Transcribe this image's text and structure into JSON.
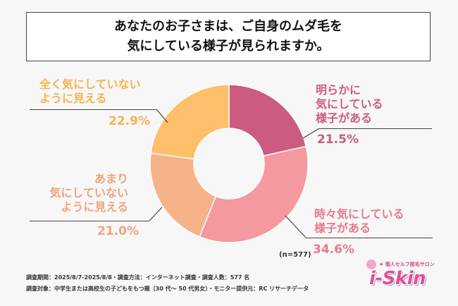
{
  "title": {
    "line1": "あなたのお子さまは、ご自身のムダ毛を",
    "line2": "気にしている様子が見られますか。"
  },
  "chart_data": {
    "type": "pie",
    "variant": "donut",
    "title": "あなたのお子さまは、ご自身のムダ毛を気にしている様子が見られますか。",
    "note": "(n=577)",
    "slices": [
      {
        "label": "明らかに\n気にしている\n様子がある",
        "value": 21.5,
        "display": "21.5%",
        "color": "#cc5b81"
      },
      {
        "label": "時々気にしている\n様子がある",
        "value": 34.6,
        "display": "34.6%",
        "color": "#f3999f"
      },
      {
        "label": "あまり\n気にしていない\nように見える",
        "value": 21.0,
        "display": "21.0%",
        "color": "#f6b288"
      },
      {
        "label": "全く気にしていない\nように見える",
        "value": 22.9,
        "display": "22.9%",
        "color": "#fdbf6a"
      }
    ]
  },
  "footer": {
    "line1": "調査期間：2025/8/7-2025/8/8・調査方法：インターネット調査・調査人数：577 名",
    "line2": "調査対象：中学生または高校生の子どもをもつ親（30 代〜 50 代男女）・モニター提供元：RC リサーチデータ"
  },
  "logo": {
    "sub": "★ 個人セルフ脱毛サロン",
    "main": "i-Skin"
  }
}
